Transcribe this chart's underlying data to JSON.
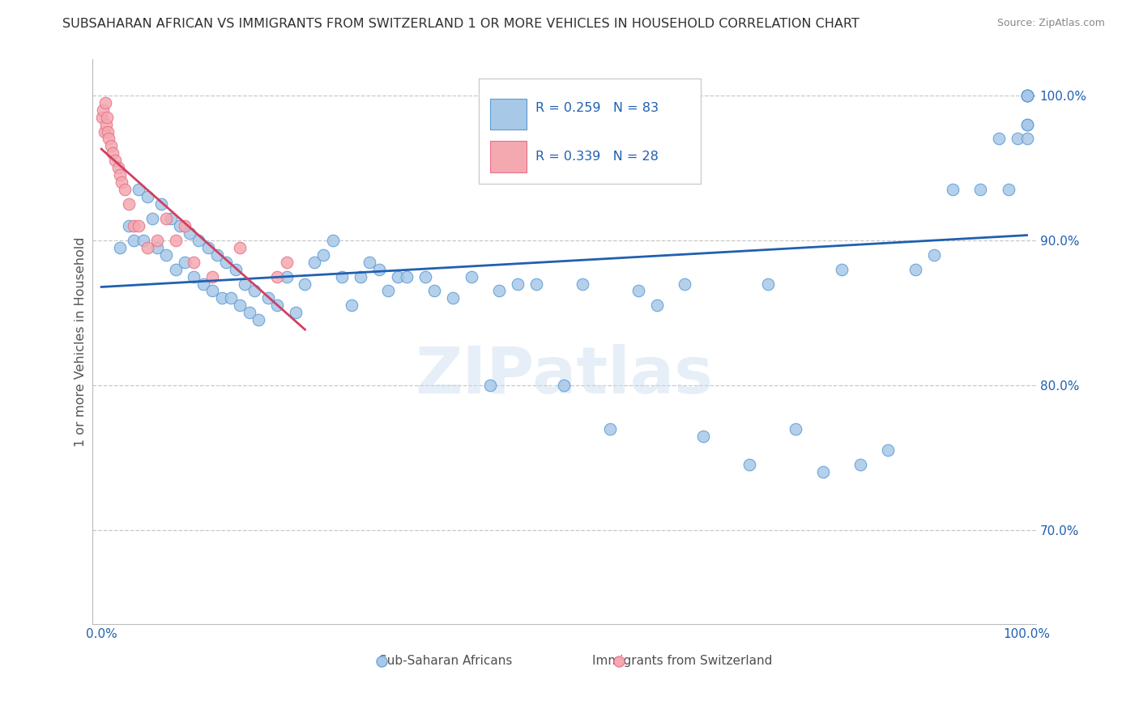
{
  "title": "SUBSAHARAN AFRICAN VS IMMIGRANTS FROM SWITZERLAND 1 OR MORE VEHICLES IN HOUSEHOLD CORRELATION CHART",
  "source": "Source: ZipAtlas.com",
  "ylabel": "1 or more Vehicles in Household",
  "ytick_labels": [
    "70.0%",
    "80.0%",
    "90.0%",
    "100.0%"
  ],
  "ytick_values": [
    0.7,
    0.8,
    0.9,
    1.0
  ],
  "xlim": [
    -0.01,
    1.01
  ],
  "ylim": [
    0.635,
    1.025
  ],
  "legend_label1": "Sub-Saharan Africans",
  "legend_label2": "Immigrants from Switzerland",
  "r1": 0.259,
  "n1": 83,
  "r2": 0.339,
  "n2": 28,
  "blue_color": "#a8c8e8",
  "pink_color": "#f4a8b0",
  "blue_edge_color": "#5b9bd5",
  "pink_edge_color": "#e8708a",
  "blue_line_color": "#2060b0",
  "pink_line_color": "#d04060",
  "title_color": "#303030",
  "axis_label_color": "#2060b0",
  "tick_color": "#2060b0",
  "watermark": "ZIPatlas",
  "grid_color": "#c8c8c8",
  "blue_x": [
    0.02,
    0.03,
    0.035,
    0.04,
    0.045,
    0.05,
    0.055,
    0.06,
    0.065,
    0.07,
    0.075,
    0.08,
    0.085,
    0.09,
    0.095,
    0.1,
    0.105,
    0.11,
    0.115,
    0.12,
    0.125,
    0.13,
    0.135,
    0.14,
    0.145,
    0.15,
    0.155,
    0.16,
    0.165,
    0.17,
    0.18,
    0.19,
    0.2,
    0.21,
    0.22,
    0.23,
    0.24,
    0.25,
    0.26,
    0.27,
    0.28,
    0.29,
    0.3,
    0.31,
    0.32,
    0.33,
    0.35,
    0.36,
    0.38,
    0.4,
    0.42,
    0.43,
    0.45,
    0.47,
    0.5,
    0.52,
    0.55,
    0.58,
    0.6,
    0.63,
    0.65,
    0.7,
    0.72,
    0.75,
    0.78,
    0.8,
    0.82,
    0.85,
    0.88,
    0.9,
    0.92,
    0.95,
    0.97,
    0.98,
    0.99,
    1.0,
    1.0,
    1.0,
    1.0,
    1.0,
    1.0,
    1.0,
    1.0
  ],
  "blue_y": [
    0.895,
    0.91,
    0.9,
    0.935,
    0.9,
    0.93,
    0.915,
    0.895,
    0.925,
    0.89,
    0.915,
    0.88,
    0.91,
    0.885,
    0.905,
    0.875,
    0.9,
    0.87,
    0.895,
    0.865,
    0.89,
    0.86,
    0.885,
    0.86,
    0.88,
    0.855,
    0.87,
    0.85,
    0.865,
    0.845,
    0.86,
    0.855,
    0.875,
    0.85,
    0.87,
    0.885,
    0.89,
    0.9,
    0.875,
    0.855,
    0.875,
    0.885,
    0.88,
    0.865,
    0.875,
    0.875,
    0.875,
    0.865,
    0.86,
    0.875,
    0.8,
    0.865,
    0.87,
    0.87,
    0.8,
    0.87,
    0.77,
    0.865,
    0.855,
    0.87,
    0.765,
    0.745,
    0.87,
    0.77,
    0.74,
    0.88,
    0.745,
    0.755,
    0.88,
    0.89,
    0.935,
    0.935,
    0.97,
    0.935,
    0.97,
    1.0,
    0.98,
    0.97,
    1.0,
    1.0,
    0.98,
    1.0,
    1.0
  ],
  "pink_x": [
    0.001,
    0.002,
    0.003,
    0.004,
    0.005,
    0.006,
    0.007,
    0.008,
    0.01,
    0.012,
    0.015,
    0.018,
    0.02,
    0.022,
    0.025,
    0.03,
    0.035,
    0.04,
    0.05,
    0.06,
    0.07,
    0.08,
    0.09,
    0.1,
    0.12,
    0.15,
    0.19,
    0.2
  ],
  "pink_y": [
    0.985,
    0.99,
    0.975,
    0.995,
    0.98,
    0.985,
    0.975,
    0.97,
    0.965,
    0.96,
    0.955,
    0.95,
    0.945,
    0.94,
    0.935,
    0.925,
    0.91,
    0.91,
    0.895,
    0.9,
    0.915,
    0.9,
    0.91,
    0.885,
    0.875,
    0.895,
    0.875,
    0.885
  ]
}
